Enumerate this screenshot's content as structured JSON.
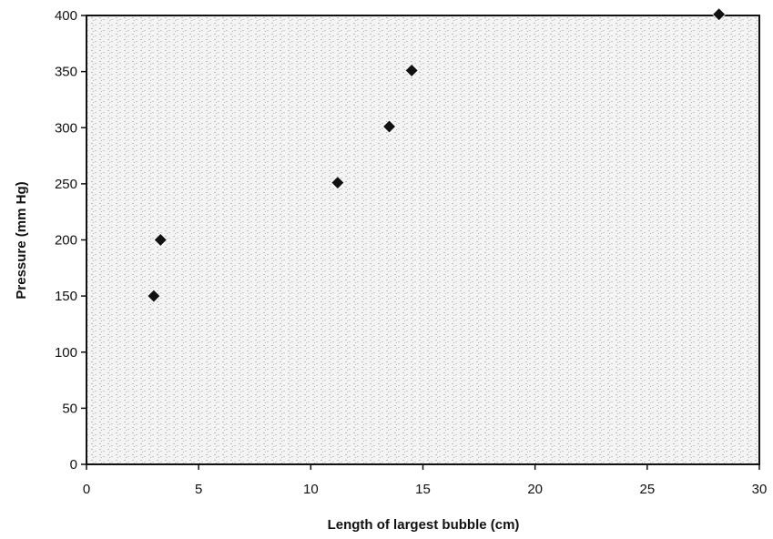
{
  "chart_data": {
    "type": "scatter",
    "title": "",
    "xlabel": "Length of largest bubble (cm)",
    "ylabel": "Pressure (mm Hg)",
    "xlim": [
      0,
      30
    ],
    "ylim": [
      0,
      400
    ],
    "xticks": [
      0,
      5,
      10,
      15,
      20,
      25,
      30
    ],
    "yticks": [
      0,
      50,
      100,
      150,
      200,
      250,
      300,
      350,
      400
    ],
    "grid": false,
    "legend": "none",
    "marker": "diamond",
    "colors": {
      "marker": "#111111",
      "plot_background": "#ececec",
      "axis": "#111111"
    },
    "series": [
      {
        "points": [
          {
            "x": 3.0,
            "y": 150
          },
          {
            "x": 3.3,
            "y": 200
          },
          {
            "x": 11.2,
            "y": 251
          },
          {
            "x": 13.5,
            "y": 301
          },
          {
            "x": 14.5,
            "y": 351
          },
          {
            "x": 28.2,
            "y": 401
          }
        ]
      }
    ]
  }
}
